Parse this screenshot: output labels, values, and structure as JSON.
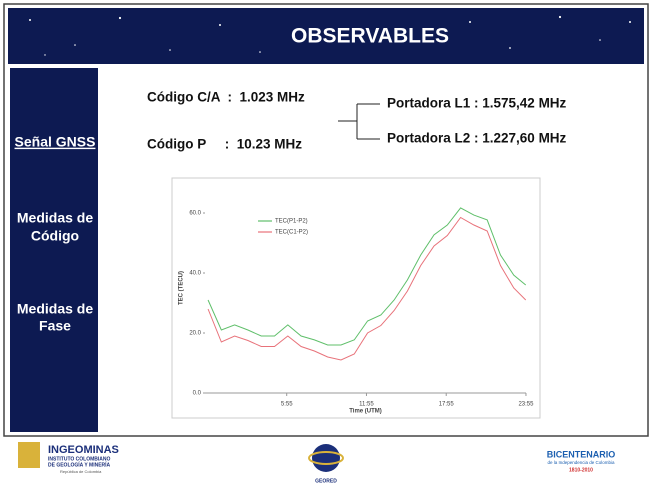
{
  "header": {
    "title": "OBSERVABLES"
  },
  "sidebar": {
    "items": [
      [
        "Señal GNSS"
      ],
      [
        "Medidas de",
        "Código"
      ],
      [
        "Medidas de",
        "Fase"
      ]
    ]
  },
  "signals": {
    "codes": [
      "Código C/A  :  1.023 MHz",
      "Código P     :  10.23 MHz"
    ],
    "carriers": [
      "Portadora L1 : 1.575,42 MHz",
      "Portadora L2 : 1.227,60 MHz"
    ]
  },
  "chart_data": {
    "type": "line",
    "x_label": "Time (UTM)",
    "y_label": "TEC (TECU)",
    "x": [
      0,
      1,
      2,
      3,
      4,
      5,
      6,
      7,
      8,
      9,
      10,
      11,
      12,
      13,
      14,
      15,
      16,
      17,
      18,
      19,
      20,
      21,
      22,
      23,
      23.9
    ],
    "series": [
      {
        "name": "TEC(P1-P2)",
        "color": "#5fbf6a",
        "values": [
          31,
          21,
          22.7,
          21,
          19,
          19,
          22.7,
          19,
          17.7,
          16,
          16,
          17.7,
          24,
          26,
          31,
          37.7,
          46,
          52.7,
          56,
          61.7,
          59.3,
          57.7,
          46,
          39.3,
          36
        ]
      },
      {
        "name": "TEC(C1-P2)",
        "color": "#e8727a",
        "values": [
          28,
          17,
          19,
          17.5,
          15.5,
          15.5,
          19,
          15.5,
          14,
          12,
          11,
          13,
          20,
          22.5,
          27.5,
          34,
          42.5,
          49,
          52.5,
          58.5,
          56,
          54,
          42.5,
          35,
          31
        ]
      }
    ],
    "xlim": [
      -0.23,
      23.92
    ],
    "ylim": [
      0,
      70
    ],
    "xticks": [
      {
        "value": 5.917,
        "label": "5:55"
      },
      {
        "value": 11.917,
        "label": "11:55"
      },
      {
        "value": 17.917,
        "label": "17:55"
      },
      {
        "value": 23.917,
        "label": "23:55"
      }
    ],
    "yticks": [
      {
        "value": 0,
        "label": "0.0"
      },
      {
        "value": 20,
        "label": "20.0"
      },
      {
        "value": 40,
        "label": "40.0"
      },
      {
        "value": 60,
        "label": "60.0"
      }
    ],
    "grid": false
  },
  "footer": {
    "left": [
      "INGEOMINAS",
      "INSTITUTO COLOMBIANO",
      "DE GEOLOGÍA Y MINERÍA",
      "República de Colombia"
    ],
    "center": "GEORED",
    "right": [
      "BICENTENARIO",
      "de la Independencia de Colombia",
      "1810-2010"
    ]
  }
}
